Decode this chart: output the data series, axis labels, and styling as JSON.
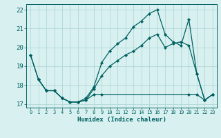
{
  "xlabel": "Humidex (Indice chaleur)",
  "bg_color": "#d8f0f0",
  "line_color": "#006060",
  "grid_color": "#b0d8d8",
  "xlim": [
    -0.5,
    23.5
  ],
  "ylim": [
    16.8,
    22.3
  ],
  "yticks": [
    17,
    18,
    19,
    20,
    21,
    22
  ],
  "xticks": [
    0,
    1,
    2,
    3,
    4,
    5,
    6,
    7,
    8,
    9,
    10,
    11,
    12,
    13,
    14,
    15,
    16,
    17,
    18,
    19,
    20,
    21,
    22,
    23
  ],
  "line1_x": [
    0,
    1,
    2,
    3,
    4,
    5,
    6,
    7,
    8,
    9,
    10,
    11,
    12,
    13,
    14,
    15,
    16,
    17,
    18,
    19,
    20,
    21,
    22,
    23
  ],
  "line1_y": [
    19.6,
    18.3,
    17.7,
    17.7,
    17.3,
    17.1,
    17.1,
    17.2,
    17.8,
    18.5,
    19.0,
    19.3,
    19.6,
    19.8,
    20.1,
    20.5,
    20.7,
    20.0,
    20.2,
    20.3,
    20.1,
    18.6,
    17.2,
    17.5
  ],
  "line2_x": [
    0,
    1,
    2,
    3,
    4,
    5,
    6,
    7,
    8,
    9,
    10,
    11,
    12,
    13,
    14,
    15,
    16,
    17,
    18,
    19,
    20,
    21,
    22,
    23
  ],
  "line2_y": [
    19.6,
    18.3,
    17.7,
    17.7,
    17.3,
    17.1,
    17.1,
    17.3,
    17.9,
    19.2,
    19.8,
    20.2,
    20.5,
    21.1,
    21.4,
    21.8,
    22.0,
    20.7,
    20.3,
    20.1,
    21.5,
    18.6,
    17.2,
    17.5
  ],
  "line3_x": [
    1,
    2,
    3,
    4,
    5,
    6,
    7,
    8,
    9,
    20,
    21,
    22,
    23
  ],
  "line3_y": [
    18.3,
    17.7,
    17.7,
    17.3,
    17.1,
    17.1,
    17.2,
    17.5,
    17.5,
    17.5,
    17.5,
    17.2,
    17.5
  ]
}
